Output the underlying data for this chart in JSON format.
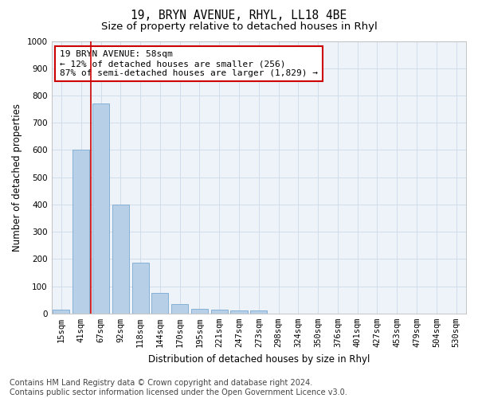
{
  "title": "19, BRYN AVENUE, RHYL, LL18 4BE",
  "subtitle": "Size of property relative to detached houses in Rhyl",
  "xlabel": "Distribution of detached houses by size in Rhyl",
  "ylabel": "Number of detached properties",
  "categories": [
    "15sqm",
    "41sqm",
    "67sqm",
    "92sqm",
    "118sqm",
    "144sqm",
    "170sqm",
    "195sqm",
    "221sqm",
    "247sqm",
    "273sqm",
    "298sqm",
    "324sqm",
    "350sqm",
    "376sqm",
    "401sqm",
    "427sqm",
    "453sqm",
    "479sqm",
    "504sqm",
    "530sqm"
  ],
  "values": [
    15,
    600,
    770,
    400,
    185,
    75,
    35,
    18,
    15,
    12,
    12,
    0,
    0,
    0,
    0,
    0,
    0,
    0,
    0,
    0,
    0
  ],
  "bar_color": "#b8cfe8",
  "bar_edge_color": "#7aaad0",
  "bar_width": 0.85,
  "ylim": [
    0,
    1000
  ],
  "yticks": [
    0,
    100,
    200,
    300,
    400,
    500,
    600,
    700,
    800,
    900,
    1000
  ],
  "red_line_index": 1.5,
  "annotation_line1": "19 BRYN AVENUE: 58sqm",
  "annotation_line2": "← 12% of detached houses are smaller (256)",
  "annotation_line3": "87% of semi-detached houses are larger (1,829) →",
  "footer_text": "Contains HM Land Registry data © Crown copyright and database right 2024.\nContains public sector information licensed under the Open Government Licence v3.0.",
  "grid_color": "#cddaea",
  "background_color": "#eef2f9",
  "title_fontsize": 10.5,
  "subtitle_fontsize": 9.5,
  "axis_label_fontsize": 8.5,
  "tick_fontsize": 7.5,
  "annotation_fontsize": 8,
  "footer_fontsize": 7
}
